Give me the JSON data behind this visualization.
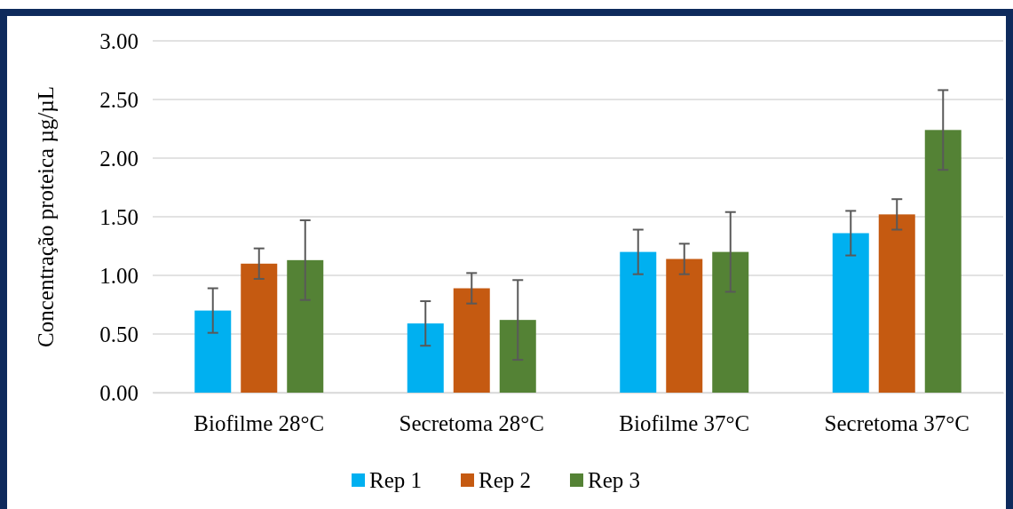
{
  "chart_data": {
    "type": "bar",
    "ylabel": "Concentração proteica µg/µL",
    "categories": [
      "Biofilme 28°C",
      "Secretoma 28°C",
      "Biofilme 37°C",
      "Secretoma 37°C"
    ],
    "series": [
      {
        "name": "Rep 1",
        "color": "#00b0f0",
        "values": [
          0.7,
          0.59,
          1.2,
          1.36
        ],
        "errors": [
          0.19,
          0.19,
          0.19,
          0.19
        ]
      },
      {
        "name": "Rep 2",
        "color": "#c55a11",
        "values": [
          1.1,
          0.89,
          1.14,
          1.52
        ],
        "errors": [
          0.13,
          0.13,
          0.13,
          0.13
        ]
      },
      {
        "name": "Rep 3",
        "color": "#548235",
        "values": [
          1.13,
          0.62,
          1.2,
          2.24
        ],
        "errors": [
          0.34,
          0.34,
          0.34,
          0.34
        ]
      }
    ],
    "ylim": [
      0,
      3
    ],
    "yticks": [
      {
        "value": 0,
        "label": "0.00"
      },
      {
        "value": 0.5,
        "label": "0.50"
      },
      {
        "value": 1,
        "label": "1.00"
      },
      {
        "value": 1.5,
        "label": "1.50"
      },
      {
        "value": 2,
        "label": "2.00"
      },
      {
        "value": 2.5,
        "label": "2.50"
      },
      {
        "value": 3,
        "label": "3.00"
      }
    ],
    "grid": "y",
    "legend": "bottom"
  }
}
